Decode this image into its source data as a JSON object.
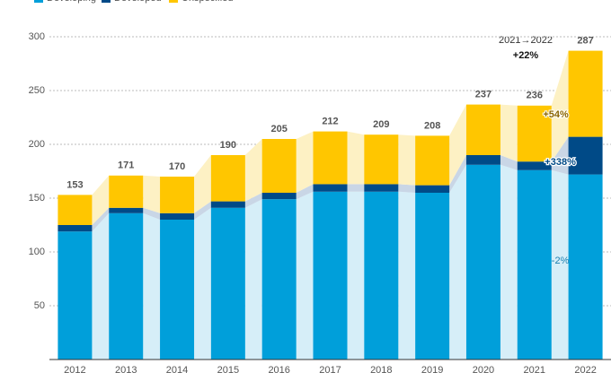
{
  "chart_data": {
    "type": "stacked_bar",
    "categories": [
      "2012",
      "2013",
      "2014",
      "2015",
      "2016",
      "2017",
      "2018",
      "2019",
      "2020",
      "2021",
      "2022"
    ],
    "series": [
      {
        "name": "Developing",
        "color": "#009fda",
        "values": [
          119,
          136,
          130,
          141,
          149,
          156,
          156,
          155,
          181,
          176,
          172
        ]
      },
      {
        "name": "Developed",
        "color": "#004a87",
        "values": [
          6,
          5,
          6,
          6,
          6,
          7,
          7,
          7,
          9,
          8,
          35
        ]
      },
      {
        "name": "Unspecified",
        "color": "#ffc600",
        "values": [
          28,
          30,
          34,
          43,
          50,
          49,
          46,
          46,
          47,
          52,
          80
        ]
      }
    ],
    "totals": [
      153,
      171,
      170,
      190,
      205,
      212,
      209,
      208,
      237,
      236,
      287
    ],
    "annotations": [
      "2021→2022",
      "+22%",
      "+54%",
      "+338%",
      "-2%"
    ],
    "ylim": [
      0,
      300
    ],
    "yticks": [
      50,
      100,
      150,
      200,
      250,
      300
    ],
    "grid": true
  }
}
